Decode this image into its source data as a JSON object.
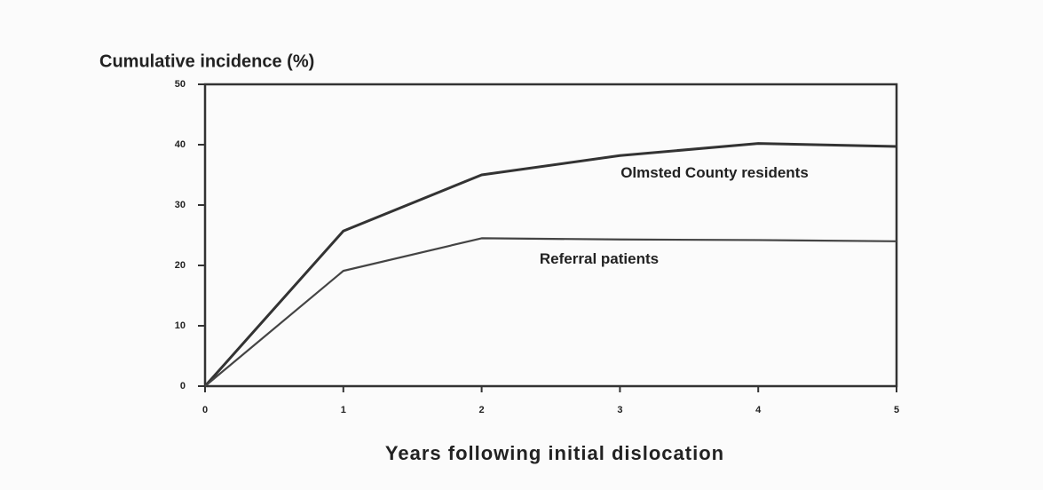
{
  "chart_data": {
    "type": "line",
    "ylabel": "Cumulative incidence (%)",
    "xlabel": "Years following initial dislocation",
    "x": [
      0,
      1,
      2,
      3,
      4,
      5
    ],
    "series": [
      {
        "name": "Olmsted County residents",
        "color": "#333333",
        "values": [
          0,
          25.7,
          35,
          38.2,
          40.2,
          39.7
        ]
      },
      {
        "name": "Referral patients",
        "color": "#444444",
        "values": [
          0,
          19.1,
          24.5,
          24.3,
          24.2,
          24
        ]
      }
    ],
    "xlim": [
      0,
      5
    ],
    "xticks": [
      0,
      1,
      2,
      3,
      4,
      5
    ],
    "ylim": [
      0,
      50
    ],
    "yticks": [
      0,
      10,
      20,
      30,
      40,
      50
    ],
    "grid": false
  }
}
